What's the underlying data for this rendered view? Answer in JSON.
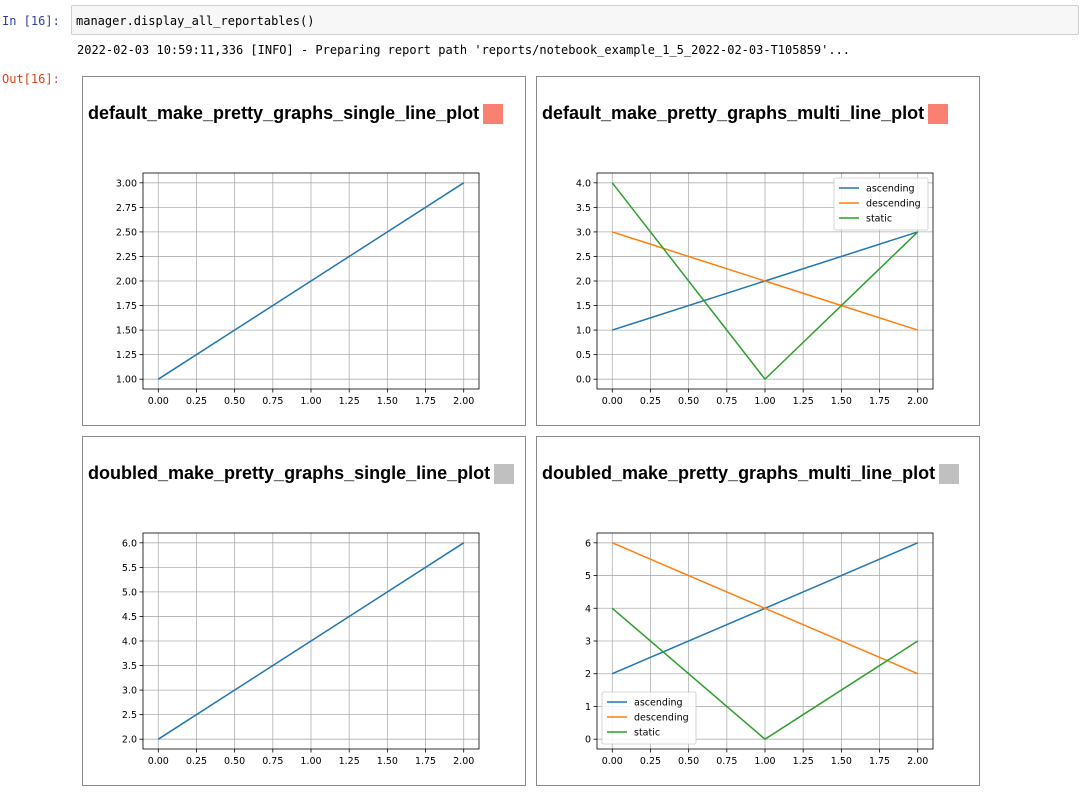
{
  "cell": {
    "in_prompt": "In [16]:",
    "code": "manager.display_all_reportables()",
    "log": "2022-02-03 10:59:11,336 [INFO] - Preparing report path 'reports/notebook_example_1_5_2022-02-03-T105859'...",
    "out_prompt": "Out[16]:"
  },
  "colors": {
    "blue": "#1f77b4",
    "orange": "#ff7f0e",
    "green": "#2ca02c",
    "swatch_red": "#fa8072",
    "swatch_grey": "#c0c0c0"
  },
  "panels": [
    {
      "title": "default_make_pretty_graphs_single_line_plot",
      "swatch": "#fa8072"
    },
    {
      "title": "default_make_pretty_graphs_multi_line_plot",
      "swatch": "#fa8072"
    },
    {
      "title": "doubled_make_pretty_graphs_single_line_plot",
      "swatch": "#c0c0c0"
    },
    {
      "title": "doubled_make_pretty_graphs_multi_line_plot",
      "swatch": "#c0c0c0"
    }
  ],
  "chart_data": [
    {
      "type": "line",
      "grid": true,
      "x": [
        0,
        1,
        2
      ],
      "xticks": [
        "0.00",
        "0.25",
        "0.50",
        "0.75",
        "1.00",
        "1.25",
        "1.50",
        "1.75",
        "2.00"
      ],
      "xlim": [
        -0.1,
        2.1
      ],
      "yticks": [
        "1.00",
        "1.25",
        "1.50",
        "1.75",
        "2.00",
        "2.25",
        "2.50",
        "2.75",
        "3.00"
      ],
      "ylim": [
        0.9,
        3.1
      ],
      "series": [
        {
          "values": [
            1,
            2,
            3
          ],
          "color": "#1f77b4"
        }
      ],
      "legend": null
    },
    {
      "type": "line",
      "grid": true,
      "x": [
        0,
        1,
        2
      ],
      "xticks": [
        "0.00",
        "0.25",
        "0.50",
        "0.75",
        "1.00",
        "1.25",
        "1.50",
        "1.75",
        "2.00"
      ],
      "xlim": [
        -0.1,
        2.1
      ],
      "yticks": [
        "0.0",
        "0.5",
        "1.0",
        "1.5",
        "2.0",
        "2.5",
        "3.0",
        "3.5",
        "4.0"
      ],
      "ylim": [
        -0.2,
        4.2
      ],
      "series": [
        {
          "name": "ascending",
          "values": [
            1,
            2,
            3
          ],
          "color": "#1f77b4"
        },
        {
          "name": "descending",
          "values": [
            3,
            2,
            1
          ],
          "color": "#ff7f0e"
        },
        {
          "name": "static",
          "values": [
            4,
            0,
            3
          ],
          "color": "#2ca02c"
        }
      ],
      "legend": "top-right"
    },
    {
      "type": "line",
      "grid": true,
      "x": [
        0,
        1,
        2
      ],
      "xticks": [
        "0.00",
        "0.25",
        "0.50",
        "0.75",
        "1.00",
        "1.25",
        "1.50",
        "1.75",
        "2.00"
      ],
      "xlim": [
        -0.1,
        2.1
      ],
      "yticks": [
        "2.0",
        "2.5",
        "3.0",
        "3.5",
        "4.0",
        "4.5",
        "5.0",
        "5.5",
        "6.0"
      ],
      "ylim": [
        1.8,
        6.2
      ],
      "series": [
        {
          "values": [
            2,
            4,
            6
          ],
          "color": "#1f77b4"
        }
      ],
      "legend": null
    },
    {
      "type": "line",
      "grid": true,
      "x": [
        0,
        1,
        2
      ],
      "xticks": [
        "0.00",
        "0.25",
        "0.50",
        "0.75",
        "1.00",
        "1.25",
        "1.50",
        "1.75",
        "2.00"
      ],
      "xlim": [
        -0.1,
        2.1
      ],
      "yticks": [
        "0",
        "1",
        "2",
        "3",
        "4",
        "5",
        "6"
      ],
      "ylim": [
        -0.3,
        6.3
      ],
      "series": [
        {
          "name": "ascending",
          "values": [
            2,
            4,
            6
          ],
          "color": "#1f77b4"
        },
        {
          "name": "descending",
          "values": [
            6,
            4,
            2
          ],
          "color": "#ff7f0e"
        },
        {
          "name": "static",
          "values": [
            4,
            0,
            3
          ],
          "color": "#2ca02c"
        }
      ],
      "legend": "bottom-left"
    }
  ]
}
